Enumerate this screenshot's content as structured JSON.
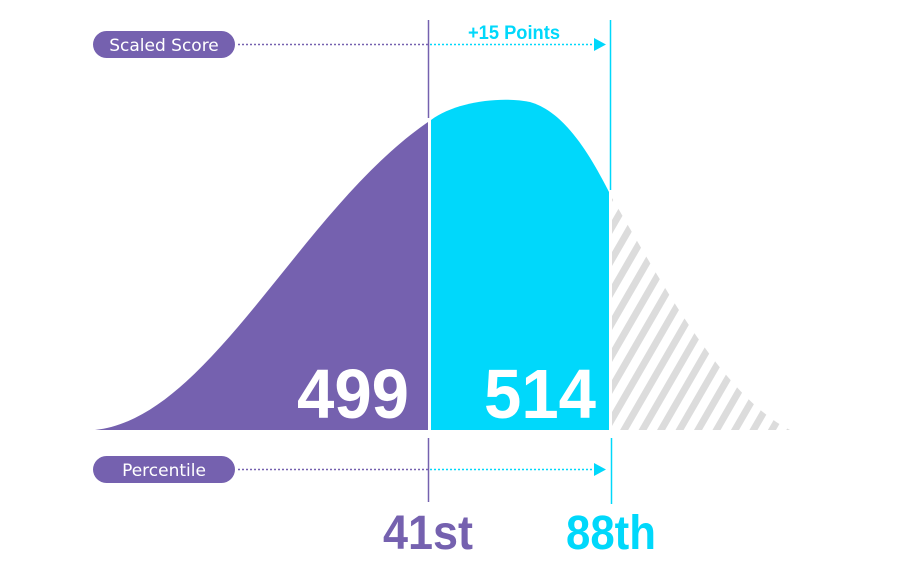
{
  "colors": {
    "purple": "#7561af",
    "cyan": "#00d8fb",
    "hatch": "#dcdcdc"
  },
  "scaled_score": {
    "label": "Scaled Score",
    "before": "499",
    "after": "514",
    "change": "+15 Points"
  },
  "percentile": {
    "label": "Percentile",
    "before": "41st",
    "after": "88th"
  }
}
